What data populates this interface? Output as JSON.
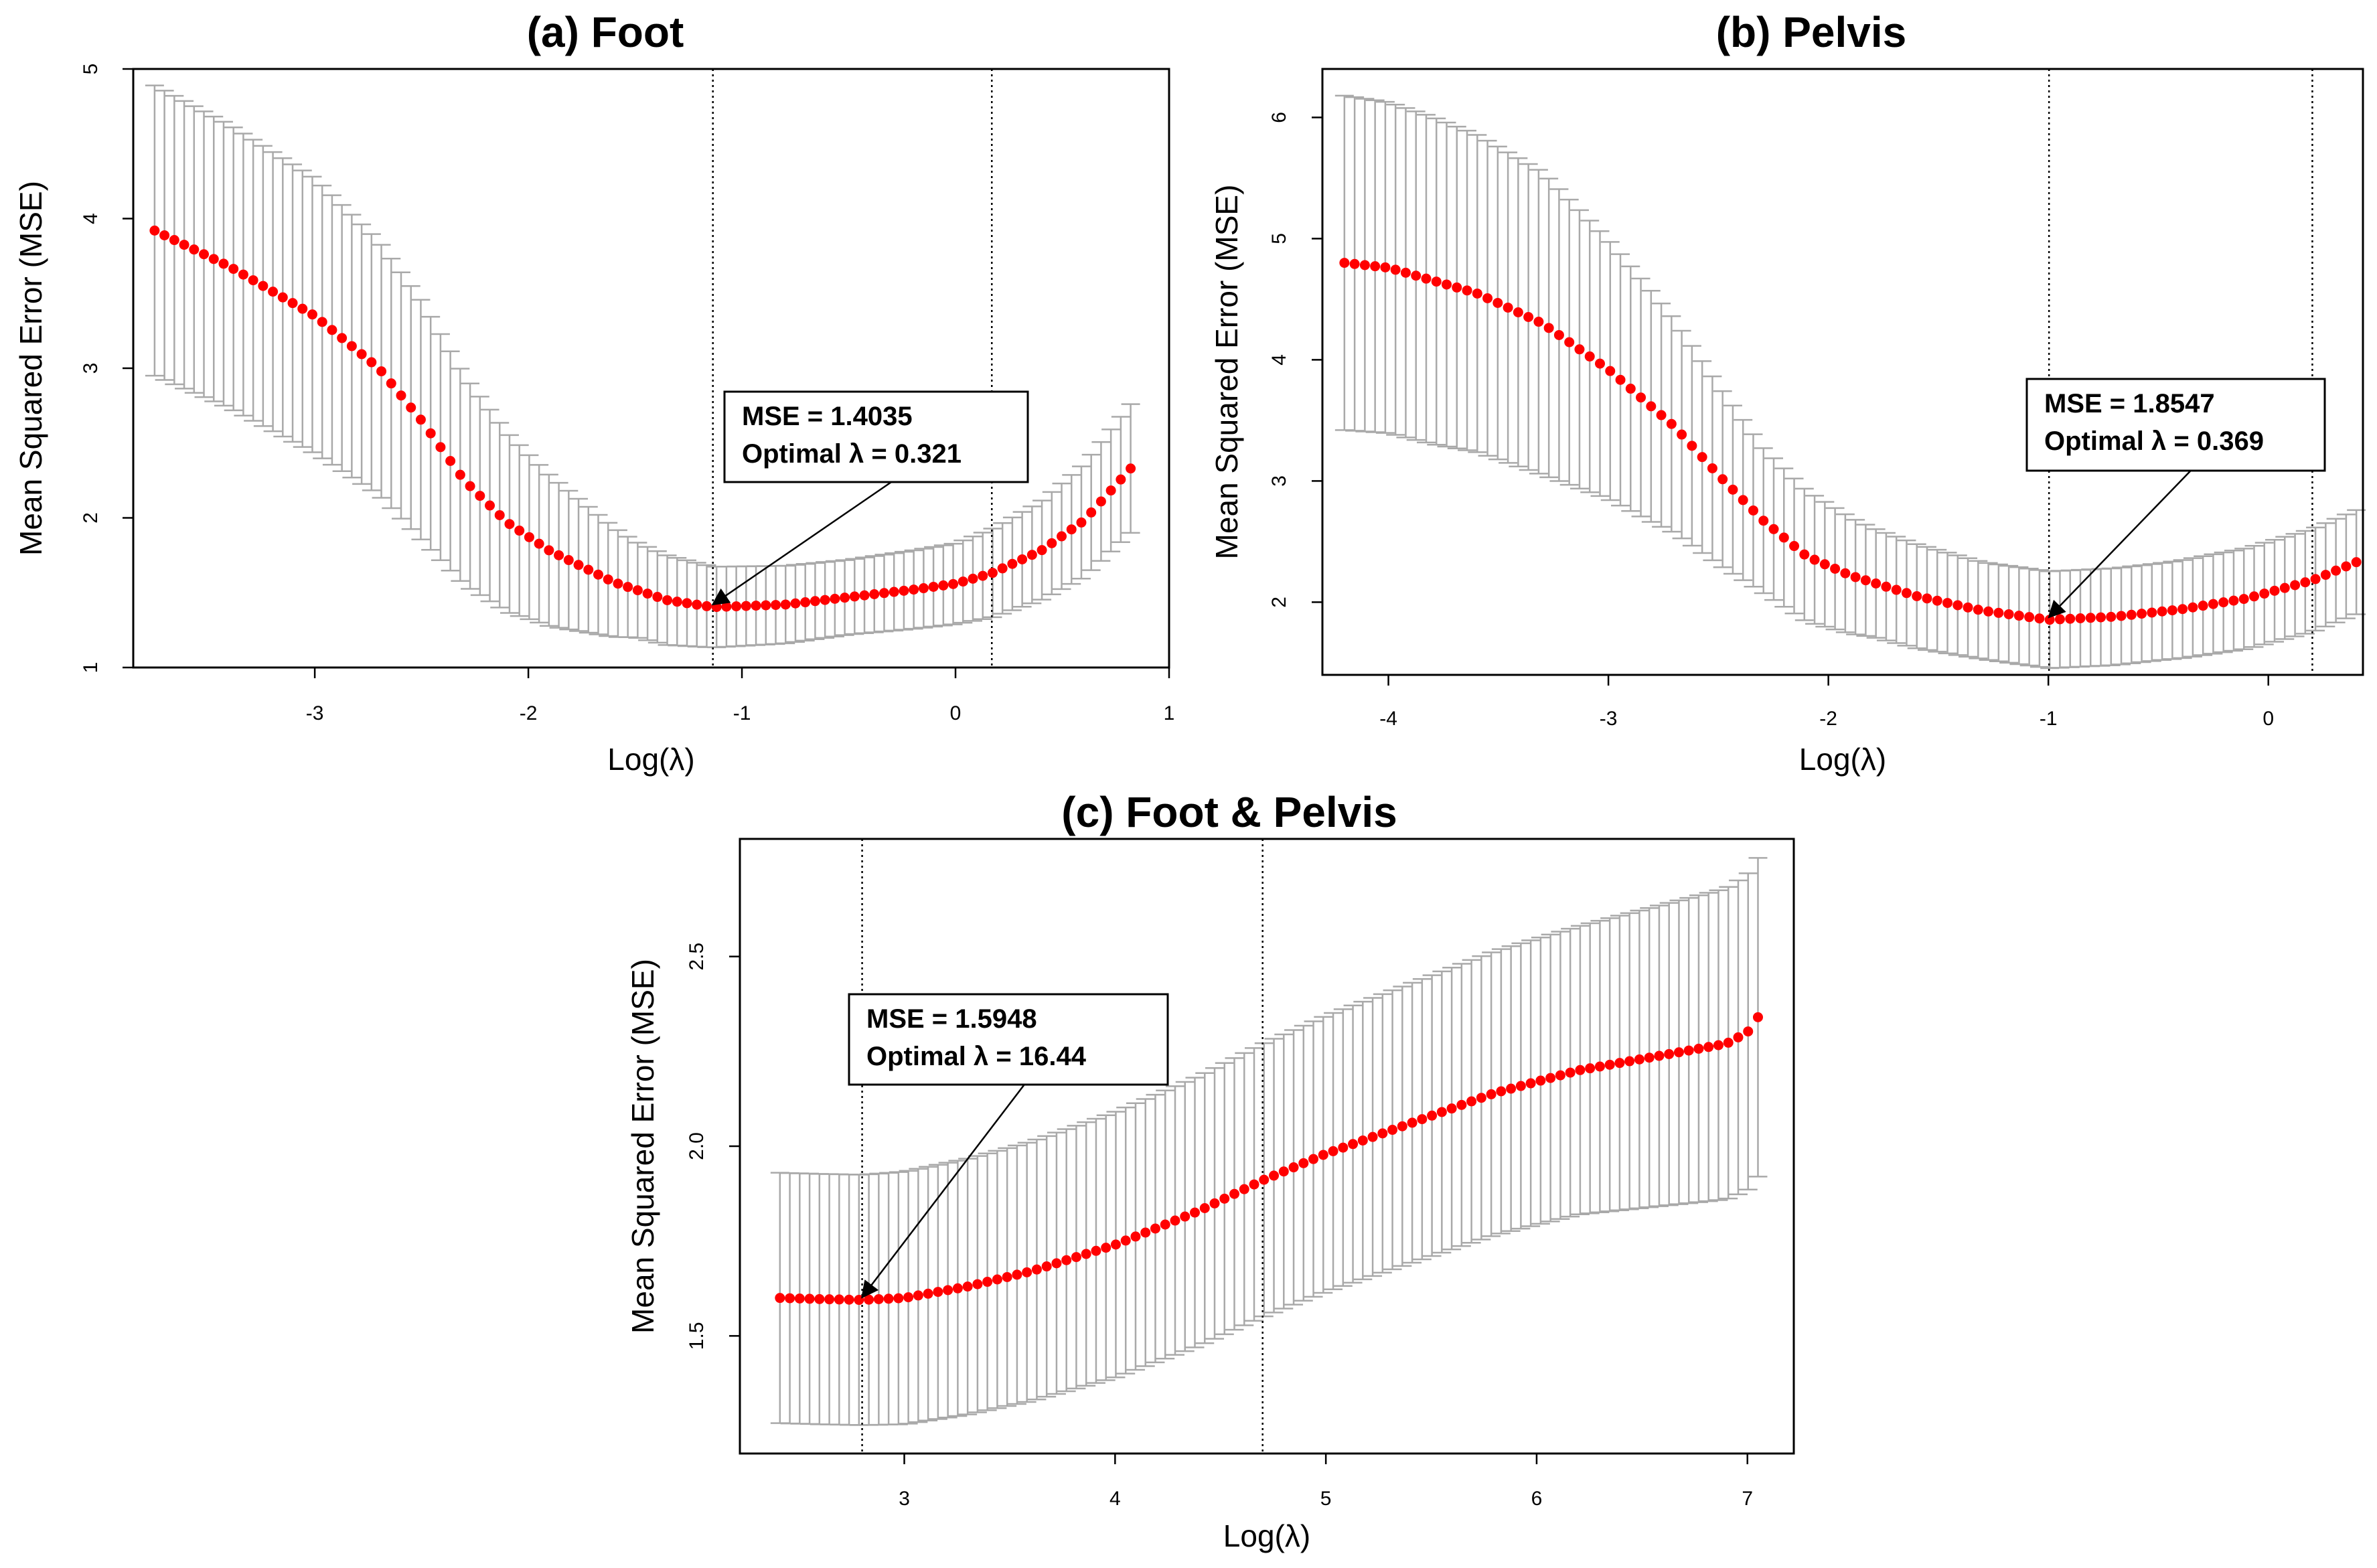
{
  "chart_data": [
    {
      "id": "a",
      "type": "scatter",
      "title": "(a) Foot",
      "xlabel": "Log(λ)",
      "ylabel": "Mean Squared Error (MSE)",
      "xlim": [
        -3.85,
        1.0
      ],
      "ylim": [
        1.0,
        5.0
      ],
      "xticks": [
        -3,
        -2,
        -1,
        0,
        1
      ],
      "yticks": [
        1,
        2,
        3,
        4,
        5
      ],
      "vlines": [
        -1.136,
        0.17
      ],
      "annotation": {
        "line1": "MSE = 1.4035",
        "line2": "Optimal λ = 0.321",
        "target_x": -1.136,
        "target_y": 1.4035
      },
      "x_range": [
        -3.75,
        0.82
      ],
      "n_points": 100,
      "mean_curve": [
        [
          -3.75,
          3.92
        ],
        [
          -3.4,
          3.68
        ],
        [
          -3.0,
          3.35
        ],
        [
          -2.7,
          3.0
        ],
        [
          -2.5,
          2.65
        ],
        [
          -2.3,
          2.25
        ],
        [
          -2.1,
          1.97
        ],
        [
          -1.9,
          1.78
        ],
        [
          -1.6,
          1.57
        ],
        [
          -1.35,
          1.45
        ],
        [
          -1.136,
          1.4035
        ],
        [
          -0.8,
          1.42
        ],
        [
          -0.5,
          1.47
        ],
        [
          -0.2,
          1.52
        ],
        [
          0.0,
          1.56
        ],
        [
          0.17,
          1.63
        ],
        [
          0.4,
          1.78
        ],
        [
          0.6,
          1.98
        ],
        [
          0.82,
          2.33
        ]
      ],
      "se_curve": [
        [
          -3.75,
          0.97
        ],
        [
          -3.0,
          0.92
        ],
        [
          -2.5,
          0.8
        ],
        [
          -2.0,
          0.55
        ],
        [
          -1.5,
          0.32
        ],
        [
          -1.136,
          0.27
        ],
        [
          -0.5,
          0.25
        ],
        [
          0.0,
          0.27
        ],
        [
          0.4,
          0.33
        ],
        [
          0.82,
          0.43
        ]
      ]
    },
    {
      "id": "b",
      "type": "scatter",
      "title": "(b) Pelvis",
      "xlabel": "Log(λ)",
      "ylabel": "Mean Squared Error (MSE)",
      "xlim": [
        -4.3,
        0.43
      ],
      "ylim": [
        1.4,
        6.4
      ],
      "xticks": [
        -4,
        -3,
        -2,
        -1,
        0
      ],
      "yticks": [
        2,
        3,
        4,
        5,
        6
      ],
      "vlines": [
        -0.997,
        0.2
      ],
      "annotation": {
        "line1": "MSE = 1.8547",
        "line2": "Optimal λ = 0.369",
        "target_x": -0.997,
        "target_y": 1.8547
      },
      "x_range": [
        -4.2,
        0.4
      ],
      "n_points": 100,
      "mean_curve": [
        [
          -4.2,
          4.8
        ],
        [
          -4.0,
          4.76
        ],
        [
          -3.6,
          4.55
        ],
        [
          -3.3,
          4.3
        ],
        [
          -3.0,
          3.92
        ],
        [
          -2.7,
          3.45
        ],
        [
          -2.5,
          3.05
        ],
        [
          -2.3,
          2.68
        ],
        [
          -2.1,
          2.38
        ],
        [
          -1.9,
          2.22
        ],
        [
          -1.6,
          2.05
        ],
        [
          -1.3,
          1.93
        ],
        [
          -0.997,
          1.8547
        ],
        [
          -0.7,
          1.88
        ],
        [
          -0.4,
          1.94
        ],
        [
          -0.1,
          2.03
        ],
        [
          0.2,
          2.18
        ],
        [
          0.4,
          2.33
        ]
      ],
      "se_curve": [
        [
          -4.2,
          1.38
        ],
        [
          -3.8,
          1.35
        ],
        [
          -3.3,
          1.25
        ],
        [
          -2.8,
          0.95
        ],
        [
          -2.3,
          0.6
        ],
        [
          -1.8,
          0.45
        ],
        [
          -1.3,
          0.4
        ],
        [
          -0.997,
          0.4
        ],
        [
          -0.5,
          0.4
        ],
        [
          0.0,
          0.42
        ],
        [
          0.4,
          0.43
        ]
      ]
    },
    {
      "id": "c",
      "type": "scatter",
      "title": "(c) Foot & Pelvis",
      "xlabel": "Log(λ)",
      "ylabel": "Mean Squared Error (MSE)",
      "xlim": [
        2.22,
        7.22
      ],
      "ylim": [
        1.19,
        2.81
      ],
      "xticks": [
        3,
        4,
        5,
        6,
        7
      ],
      "yticks": [
        1.5,
        2.0,
        2.5
      ],
      "ytick_labels": [
        "1.5",
        "2.0",
        "2.5"
      ],
      "vlines": [
        2.8,
        4.7
      ],
      "annotation": {
        "line1": "MSE = 1.5948",
        "line2": "Optimal λ = 16.44",
        "target_x": 2.8,
        "target_y": 1.5948
      },
      "x_range": [
        2.41,
        7.05
      ],
      "n_points": 100,
      "mean_curve": [
        [
          2.41,
          1.6
        ],
        [
          2.6,
          1.597
        ],
        [
          2.8,
          1.5948
        ],
        [
          3.0,
          1.6
        ],
        [
          3.3,
          1.63
        ],
        [
          3.6,
          1.67
        ],
        [
          4.0,
          1.74
        ],
        [
          4.4,
          1.83
        ],
        [
          4.7,
          1.91
        ],
        [
          5.0,
          1.98
        ],
        [
          5.4,
          2.06
        ],
        [
          5.8,
          2.14
        ],
        [
          6.2,
          2.2
        ],
        [
          6.6,
          2.24
        ],
        [
          6.9,
          2.27
        ],
        [
          7.0,
          2.3
        ],
        [
          7.05,
          2.34
        ]
      ],
      "se_curve": [
        [
          2.41,
          0.33
        ],
        [
          2.8,
          0.33
        ],
        [
          3.5,
          0.34
        ],
        [
          4.0,
          0.35
        ],
        [
          4.7,
          0.36
        ],
        [
          5.5,
          0.37
        ],
        [
          6.2,
          0.38
        ],
        [
          6.9,
          0.41
        ],
        [
          7.05,
          0.42
        ]
      ]
    }
  ]
}
